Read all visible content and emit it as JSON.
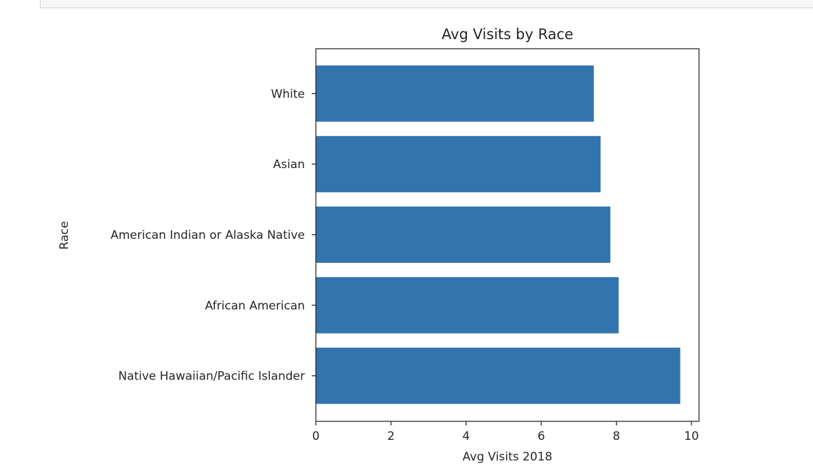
{
  "chart_data": {
    "type": "bar",
    "orientation": "horizontal",
    "title": "Avg Visits by Race",
    "xlabel": "Avg Visits 2018",
    "ylabel": "Race",
    "categories": [
      "White",
      "Asian",
      "American Indian or Alaska Native",
      "African American",
      "Native Hawaiian/Pacific Islander"
    ],
    "values": [
      7.4,
      7.58,
      7.84,
      8.06,
      9.7
    ],
    "xlim": [
      0,
      10.2
    ],
    "xticks": [
      "0",
      "2",
      "4",
      "6",
      "8",
      "10"
    ],
    "xtick_values": [
      0,
      2,
      4,
      6,
      8,
      10
    ],
    "bar_color": "#3274ae",
    "grid": false,
    "legend": "none"
  }
}
